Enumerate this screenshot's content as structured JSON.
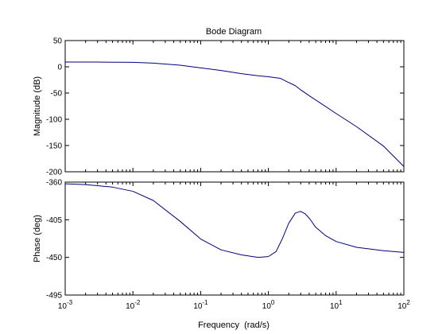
{
  "chart_data": {
    "type": "line",
    "title": "Bode Diagram",
    "xlabel": "Frequency  (rad/s)",
    "xscale": "log",
    "xlim": [
      0.001,
      100
    ],
    "x_ticks": [
      {
        "base": "10",
        "exp": "-3"
      },
      {
        "base": "10",
        "exp": "-2"
      },
      {
        "base": "10",
        "exp": "-1"
      },
      {
        "base": "10",
        "exp": "0"
      },
      {
        "base": "10",
        "exp": "1"
      },
      {
        "base": "10",
        "exp": "2"
      }
    ],
    "line_color": "#000080",
    "grid": false,
    "panels": [
      {
        "ylabel": "Magnitude (dB)",
        "ylim": [
          -200,
          50
        ],
        "yticks": [
          "50",
          "0",
          "-50",
          "-100",
          "-150",
          "-200"
        ],
        "ytick_values": [
          50,
          0,
          -50,
          -100,
          -150,
          -200
        ],
        "x": [
          0.001,
          0.003,
          0.01,
          0.02,
          0.05,
          0.1,
          0.2,
          0.4,
          0.7,
          1.0,
          1.5,
          2.0,
          2.5,
          3.0,
          4.0,
          6.0,
          10,
          20,
          50,
          100
        ],
        "y": [
          9,
          9,
          8.5,
          7,
          3,
          -2,
          -7,
          -13,
          -17,
          -19,
          -22,
          -30,
          -36,
          -44,
          -55,
          -70,
          -89,
          -114,
          -151,
          -190
        ]
      },
      {
        "ylabel": "Phase (deg)",
        "ylim": [
          -495,
          -360
        ],
        "yticks": [
          "-360",
          "-405",
          "-450",
          "-495"
        ],
        "ytick_values": [
          -360,
          -405,
          -450,
          -495
        ],
        "x": [
          0.001,
          0.002,
          0.005,
          0.01,
          0.02,
          0.05,
          0.1,
          0.2,
          0.4,
          0.7,
          1.0,
          1.3,
          1.6,
          2.0,
          2.5,
          3.0,
          3.5,
          4.0,
          5.0,
          7.0,
          10,
          20,
          50,
          100
        ],
        "y": [
          -362,
          -363,
          -366,
          -371,
          -382,
          -407,
          -428,
          -441,
          -447,
          -450,
          -449,
          -443,
          -428,
          -409,
          -397,
          -395,
          -398,
          -403,
          -414,
          -424,
          -431,
          -438,
          -442,
          -444
        ]
      }
    ]
  }
}
